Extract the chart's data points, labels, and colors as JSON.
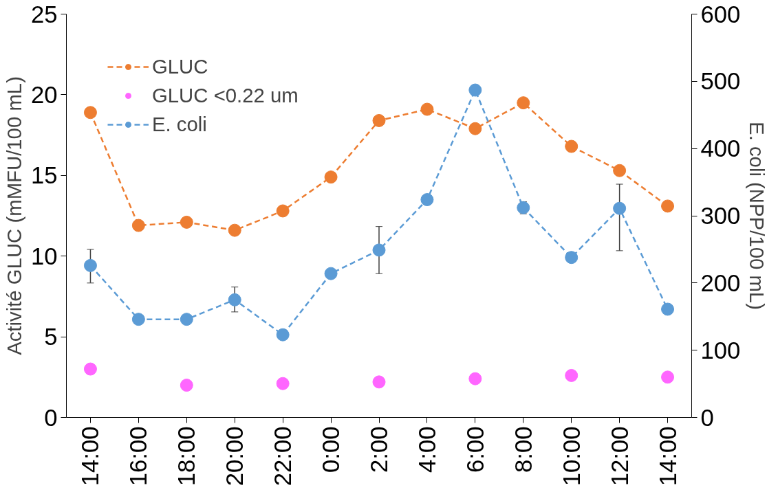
{
  "chart_data": {
    "type": "line",
    "ylabel": "Activité GLUC (mMFU/100 mL)",
    "y2label": "E. coli (NPP/100 mL)",
    "categories": [
      "14:00",
      "16:00",
      "18:00",
      "20:00",
      "22:00",
      "0:00",
      "2:00",
      "4:00",
      "6:00",
      "8:00",
      "10:00",
      "12:00",
      "14:00"
    ],
    "ylim": [
      0,
      25
    ],
    "yticks": [
      0,
      5,
      10,
      15,
      20,
      25
    ],
    "y2lim": [
      0,
      600
    ],
    "y2ticks": [
      0,
      100,
      200,
      300,
      400,
      500,
      600
    ],
    "legend": "top left",
    "grid": false,
    "marker": "circle",
    "line_style": "dashed",
    "series": [
      {
        "name": "GLUC",
        "color": "#ed7d31",
        "values": [
          18.9,
          11.9,
          12.1,
          11.6,
          12.8,
          14.9,
          18.4,
          19.1,
          17.9,
          19.5,
          16.8,
          15.3,
          13.1
        ]
      },
      {
        "name": "GLUC <0.22 um",
        "type": "scatter",
        "color": "#ff66ff",
        "values": [
          3.0,
          null,
          2.0,
          null,
          2.1,
          null,
          2.2,
          null,
          2.4,
          null,
          2.6,
          null,
          2.5
        ]
      },
      {
        "name": "E. coli",
        "axis": "y2",
        "color": "#5b9bd5",
        "values": [
          226,
          146,
          146,
          175,
          123,
          214,
          249,
          324,
          487,
          312,
          238,
          311,
          161
        ],
        "errors": [
          [
            200,
            250
          ],
          null,
          null,
          [
            157,
            194
          ],
          null,
          null,
          [
            214,
            284
          ],
          null,
          null,
          [
            303,
            321
          ],
          null,
          [
            248,
            347
          ],
          null
        ]
      }
    ]
  }
}
